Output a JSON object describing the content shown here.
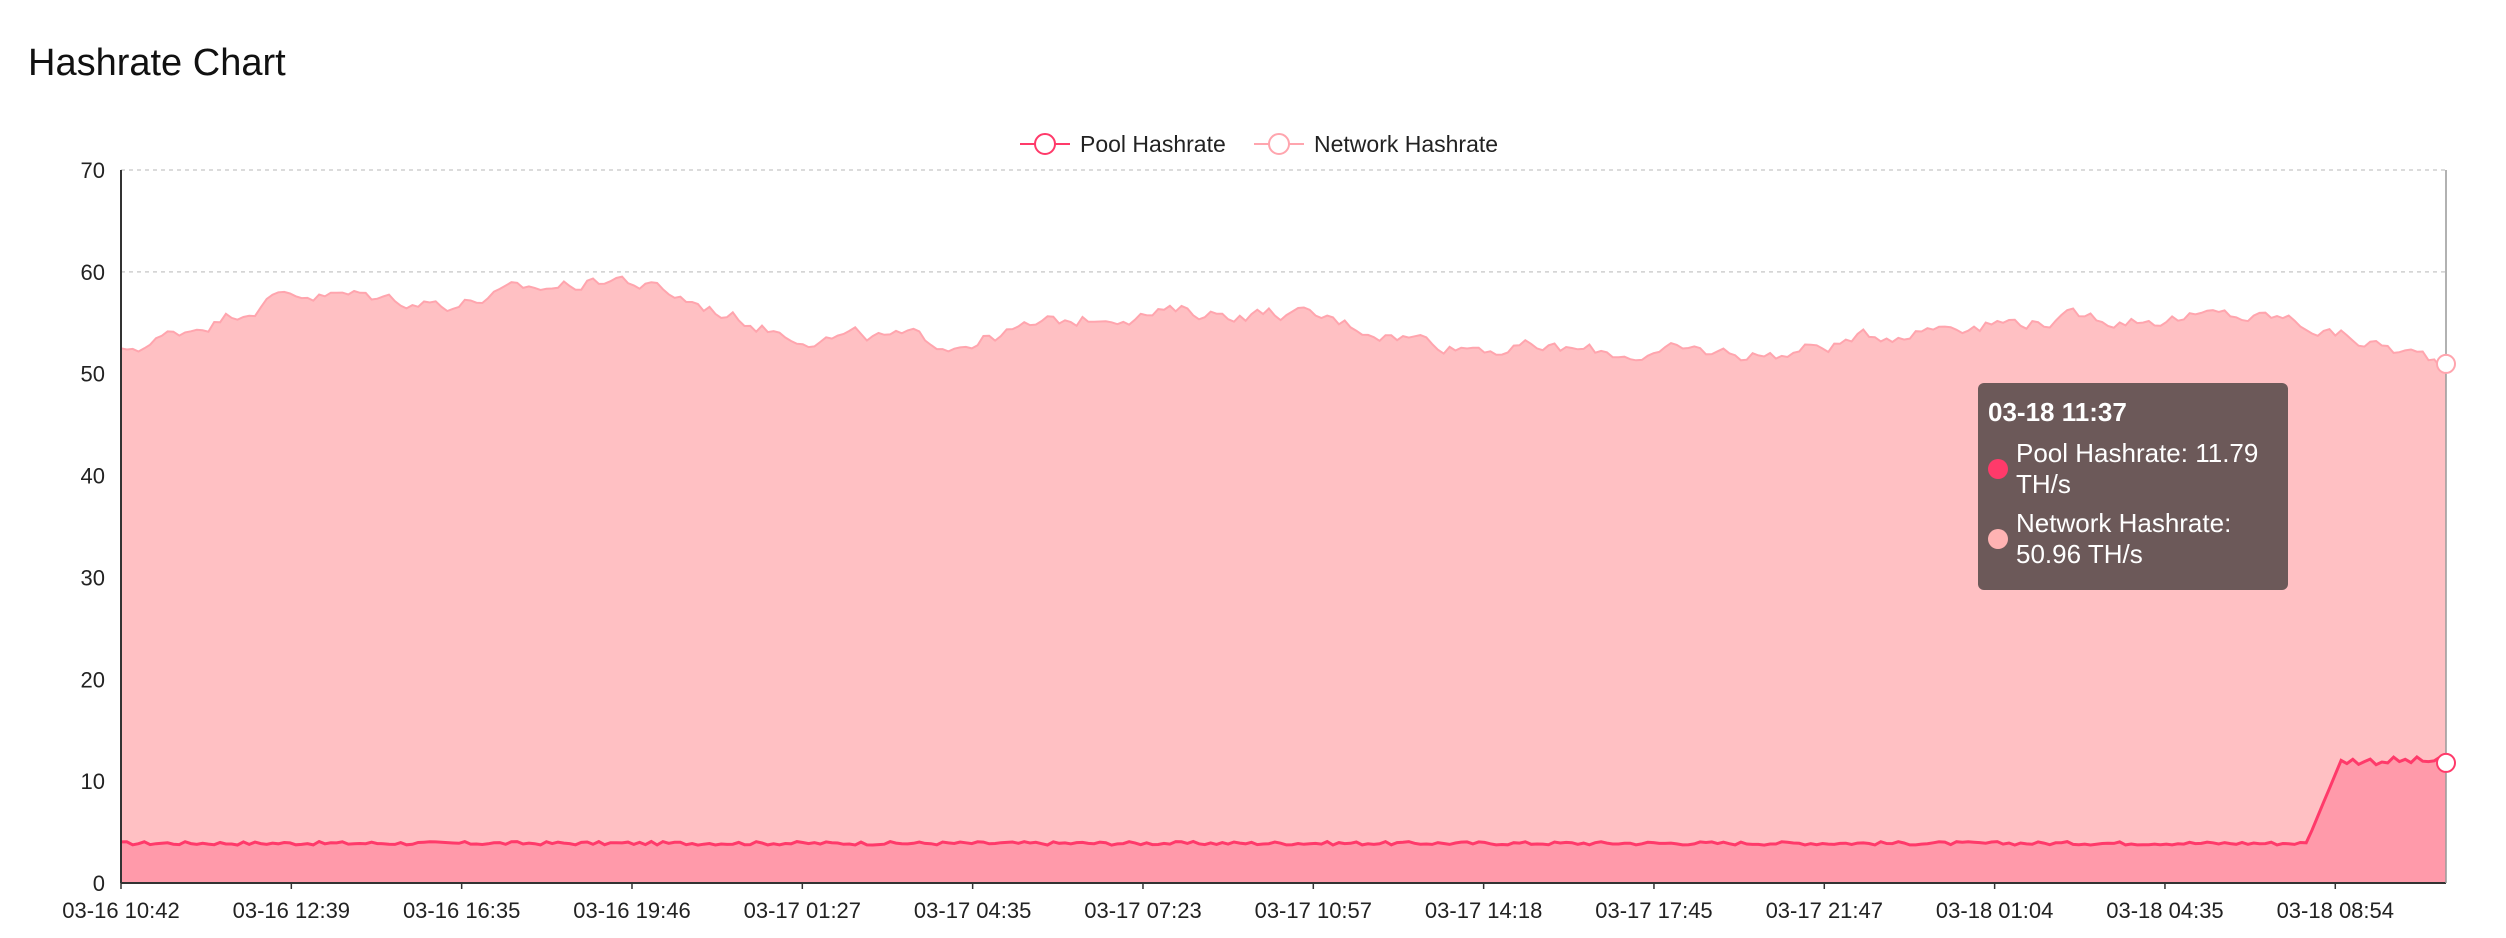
{
  "title": "Hashrate Chart",
  "tooltip": {
    "title": "03-18 11:37",
    "rows": [
      {
        "text": "Pool Hashrate: 11.79 TH/s",
        "color": "#ff3a6a"
      },
      {
        "text": "Network Hashrate: 50.96 TH/s",
        "color": "#ffb3b3"
      }
    ]
  },
  "chart_data": {
    "type": "area",
    "title": "",
    "xlabel": "",
    "ylabel": "",
    "ylim": [
      0,
      70
    ],
    "yticks": [
      0,
      10,
      20,
      30,
      40,
      50,
      60,
      70
    ],
    "grid": true,
    "legend_position": "top-center",
    "x": [
      "03-16 10:42",
      "03-16 12:39",
      "03-16 16:35",
      "03-16 19:46",
      "03-17 01:27",
      "03-17 04:35",
      "03-17 07:23",
      "03-17 10:57",
      "03-17 14:18",
      "03-17 17:45",
      "03-17 21:47",
      "03-18 01:04",
      "03-18 04:35",
      "03-18 08:54",
      "03-18 11:37"
    ],
    "xtick_labels": [
      "03-16 10:42",
      "03-16 12:39",
      "03-16 16:35",
      "03-16 19:46",
      "03-17 01:27",
      "03-17 04:35",
      "03-17 07:23",
      "03-17 10:57",
      "03-17 14:18",
      "03-17 17:45",
      "03-17 21:47",
      "03-18 01:04",
      "03-18 04:35",
      "03-18 08:54"
    ],
    "series": [
      {
        "name": "Pool Hashrate",
        "color": "#ff3a6a",
        "fill": "#ff9aaa",
        "values": [
          3.8,
          3.9,
          3.8,
          3.9,
          3.9,
          4.0,
          3.9,
          3.8,
          3.9,
          3.9,
          3.9,
          4.0,
          4.0,
          3.9,
          11.79
        ]
      },
      {
        "name": "Network Hashrate",
        "color": "#ffa5ae",
        "fill": "#ffc0c3",
        "values": [
          52,
          58,
          57,
          59.5,
          54,
          53,
          56,
          56,
          53,
          52,
          52,
          55,
          55.5,
          55.5,
          50.96
        ]
      }
    ]
  }
}
